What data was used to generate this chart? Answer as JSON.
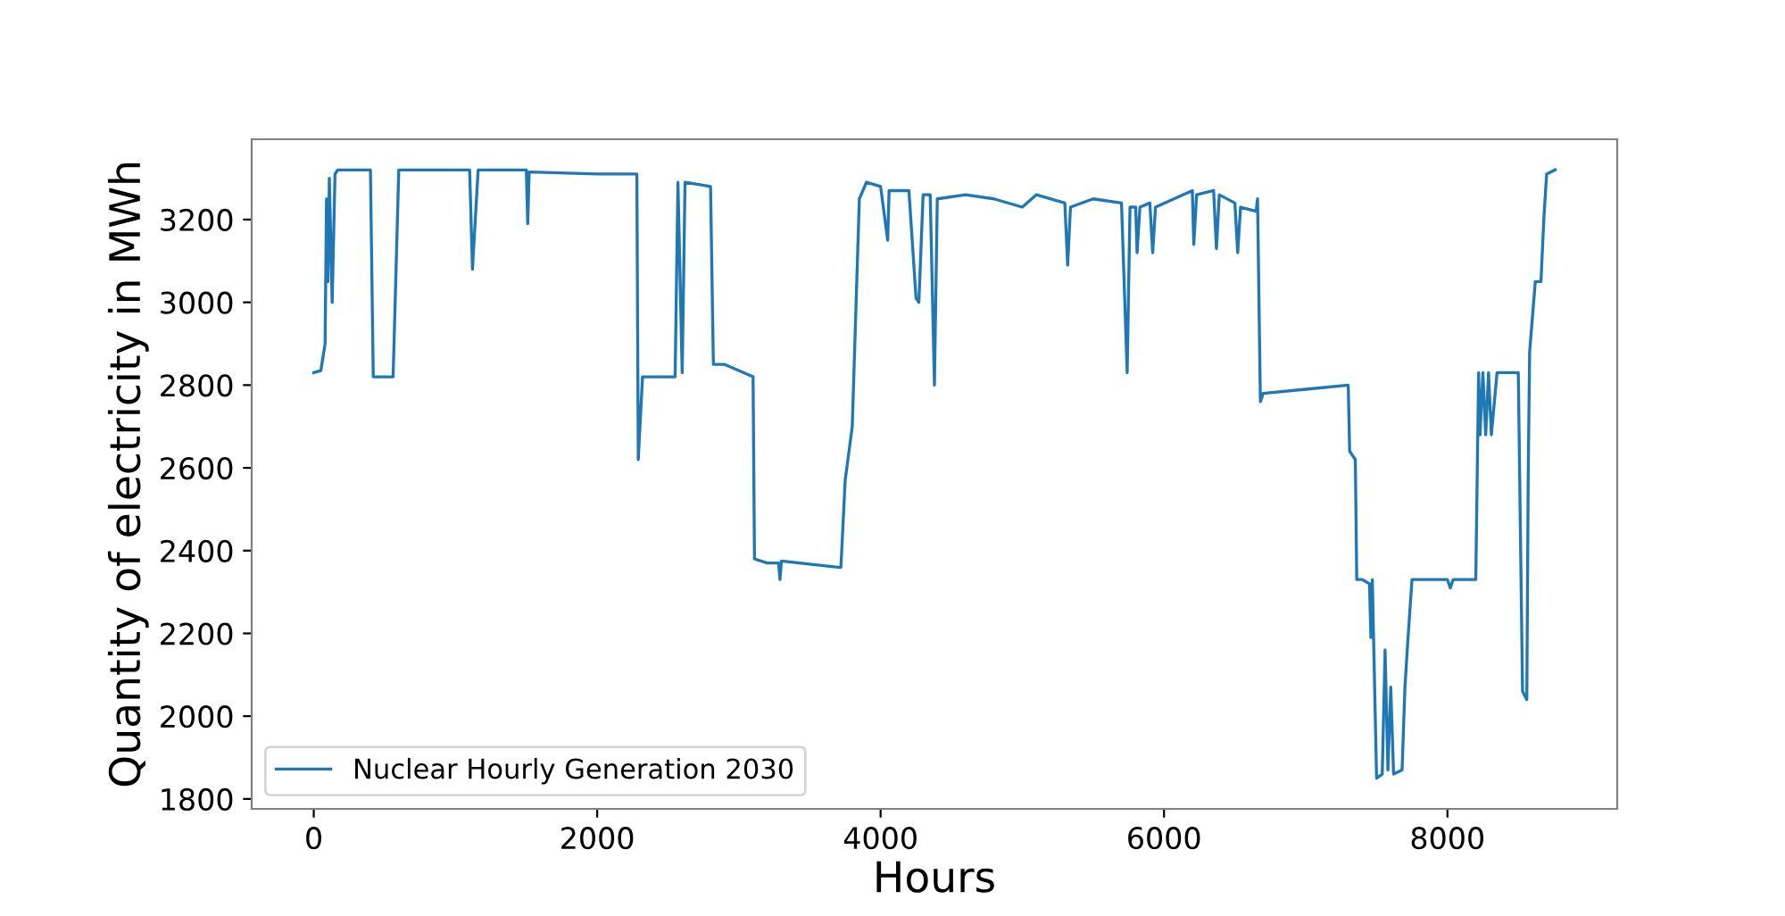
{
  "chart_data": {
    "type": "line",
    "xlabel": "Hours",
    "ylabel": "Quantity of electricity in MWh",
    "xlim": [
      -438,
      9198
    ],
    "ylim": [
      1776,
      3394
    ],
    "xticks": [
      0,
      2000,
      4000,
      6000,
      8000
    ],
    "yticks": [
      1800,
      2000,
      2200,
      2400,
      2600,
      2800,
      3000,
      3200
    ],
    "grid": false,
    "legend": "bottom left",
    "series": [
      {
        "name": "Nuclear Hourly Generation 2030",
        "color": "#1f77b4",
        "x": [
          0,
          50,
          80,
          90,
          100,
          110,
          130,
          150,
          170,
          400,
          420,
          560,
          600,
          1100,
          1120,
          1160,
          1500,
          1510,
          1520,
          2000,
          2280,
          2290,
          2320,
          2550,
          2570,
          2600,
          2620,
          2800,
          2820,
          2900,
          3100,
          3110,
          3200,
          3280,
          3290,
          3300,
          3700,
          3720,
          3750,
          3800,
          3850,
          3900,
          4000,
          4050,
          4060,
          4200,
          4250,
          4270,
          4300,
          4350,
          4380,
          4400,
          4600,
          4800,
          5000,
          5100,
          5300,
          5320,
          5340,
          5500,
          5700,
          5740,
          5760,
          5800,
          5810,
          5830,
          5900,
          5920,
          5940,
          6200,
          6210,
          6230,
          6350,
          6370,
          6390,
          6500,
          6520,
          6540,
          6650,
          6660,
          6680,
          6700,
          7000,
          7300,
          7310,
          7350,
          7360,
          7400,
          7450,
          7460,
          7470,
          7500,
          7540,
          7560,
          7580,
          7600,
          7620,
          7680,
          7700,
          7720,
          7750,
          8000,
          8020,
          8040,
          8200,
          8220,
          8230,
          8250,
          8270,
          8290,
          8310,
          8350,
          8500,
          8530,
          8560,
          8570,
          8580,
          8620,
          8660,
          8680,
          8700,
          8760
        ],
        "values": [
          2830,
          2835,
          2900,
          3250,
          3050,
          3300,
          3000,
          3310,
          3320,
          3320,
          2820,
          2820,
          3320,
          3320,
          3080,
          3320,
          3320,
          3190,
          3315,
          3310,
          3310,
          2620,
          2820,
          2820,
          3290,
          2830,
          3290,
          3280,
          2850,
          2850,
          2820,
          2380,
          2370,
          2370,
          2330,
          2375,
          2360,
          2360,
          2570,
          2700,
          3250,
          3290,
          3280,
          3150,
          3270,
          3270,
          3010,
          3000,
          3260,
          3260,
          2800,
          3250,
          3260,
          3250,
          3230,
          3260,
          3240,
          3090,
          3230,
          3250,
          3240,
          2830,
          3230,
          3230,
          3120,
          3230,
          3240,
          3120,
          3230,
          3270,
          3140,
          3260,
          3270,
          3130,
          3260,
          3240,
          3120,
          3230,
          3220,
          3250,
          2760,
          2780,
          2790,
          2800,
          2640,
          2620,
          2330,
          2330,
          2320,
          2190,
          2330,
          1850,
          1860,
          2160,
          1870,
          2070,
          1860,
          1870,
          2070,
          2180,
          2330,
          2330,
          2310,
          2330,
          2330,
          2830,
          2680,
          2830,
          2680,
          2830,
          2680,
          2830,
          2830,
          2060,
          2040,
          2580,
          2880,
          3050,
          3050,
          3200,
          3310,
          3320
        ]
      }
    ]
  }
}
